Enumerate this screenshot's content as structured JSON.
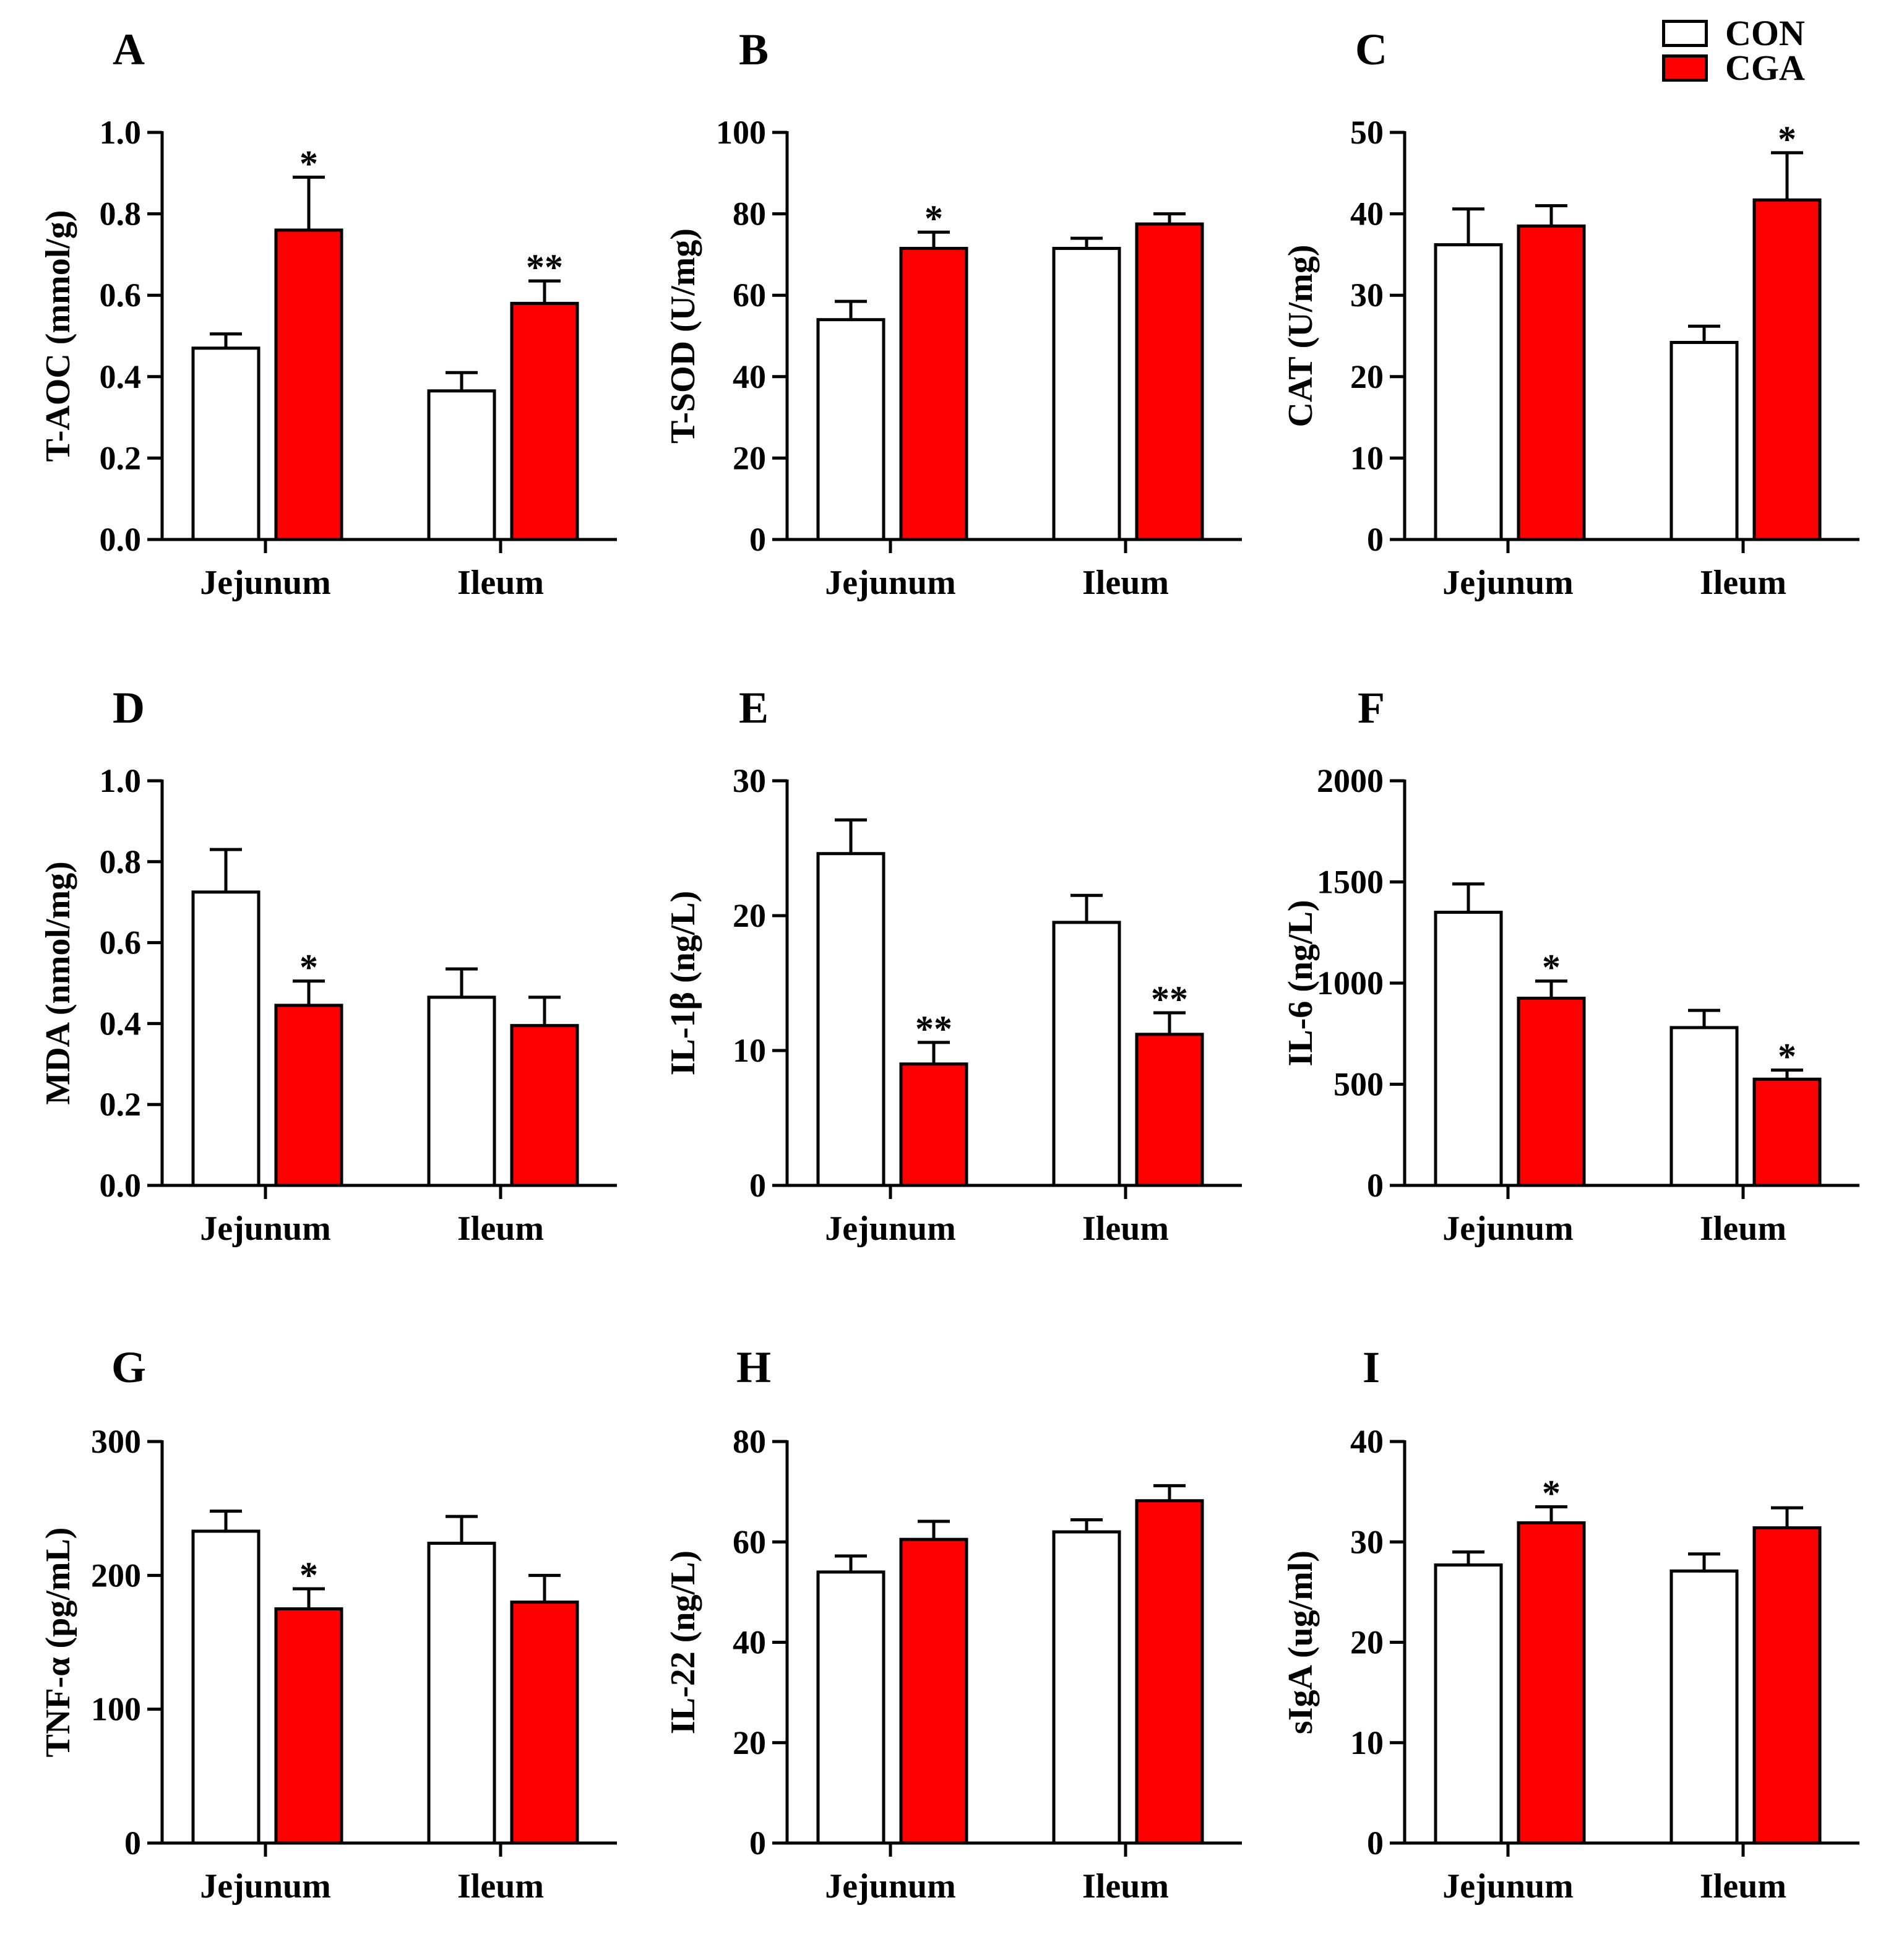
{
  "legend": {
    "con_label": "CON",
    "cga_label": "CGA",
    "con_color": "#ffffff",
    "cga_color": "#ff0000"
  },
  "chart_data": [
    {
      "panel": "A",
      "type": "bar",
      "ylabel": "T-AOC (mmol/g)",
      "categories": [
        "Jejunum",
        "Ileum"
      ],
      "ylim": [
        0,
        1.0
      ],
      "yticks": [
        0.0,
        0.2,
        0.4,
        0.6,
        0.8,
        1.0
      ],
      "tick_decimals": 1,
      "series": [
        {
          "name": "CON",
          "values": [
            0.47,
            0.365
          ],
          "errors": [
            0.035,
            0.045
          ],
          "sig": [
            "",
            ""
          ]
        },
        {
          "name": "CGA",
          "values": [
            0.76,
            0.58
          ],
          "errors": [
            0.13,
            0.055
          ],
          "sig": [
            "*",
            "**"
          ]
        }
      ]
    },
    {
      "panel": "B",
      "type": "bar",
      "ylabel": "T-SOD (U/mg)",
      "categories": [
        "Jejunum",
        "Ileum"
      ],
      "ylim": [
        0,
        100
      ],
      "yticks": [
        0,
        20,
        40,
        60,
        80,
        100
      ],
      "tick_decimals": 0,
      "series": [
        {
          "name": "CON",
          "values": [
            54,
            71.5
          ],
          "errors": [
            4.5,
            2.5
          ],
          "sig": [
            "",
            ""
          ]
        },
        {
          "name": "CGA",
          "values": [
            71.5,
            77.5
          ],
          "errors": [
            4,
            2.5
          ],
          "sig": [
            "*",
            ""
          ]
        }
      ]
    },
    {
      "panel": "C",
      "type": "bar",
      "ylabel": "CAT (U/mg)",
      "categories": [
        "Jejunum",
        "Ileum"
      ],
      "ylim": [
        0,
        50
      ],
      "yticks": [
        0,
        10,
        20,
        30,
        40,
        50
      ],
      "tick_decimals": 0,
      "series": [
        {
          "name": "CON",
          "values": [
            36.2,
            24.2
          ],
          "errors": [
            4.4,
            2.0
          ],
          "sig": [
            "",
            ""
          ]
        },
        {
          "name": "CGA",
          "values": [
            38.5,
            41.7
          ],
          "errors": [
            2.5,
            5.8
          ],
          "sig": [
            "",
            "*"
          ]
        }
      ]
    },
    {
      "panel": "D",
      "type": "bar",
      "ylabel": "MDA (nmol/mg)",
      "categories": [
        "Jejunum",
        "Ileum"
      ],
      "ylim": [
        0,
        1.0
      ],
      "yticks": [
        0.0,
        0.2,
        0.4,
        0.6,
        0.8,
        1.0
      ],
      "tick_decimals": 1,
      "series": [
        {
          "name": "CON",
          "values": [
            0.725,
            0.465
          ],
          "errors": [
            0.105,
            0.07
          ],
          "sig": [
            "",
            ""
          ]
        },
        {
          "name": "CGA",
          "values": [
            0.445,
            0.395
          ],
          "errors": [
            0.06,
            0.07
          ],
          "sig": [
            "*",
            ""
          ]
        }
      ]
    },
    {
      "panel": "E",
      "type": "bar",
      "ylabel": "IL-1β (ng/L)",
      "categories": [
        "Jejunum",
        "Ileum"
      ],
      "ylim": [
        0,
        30
      ],
      "yticks": [
        0,
        10,
        20,
        30
      ],
      "tick_decimals": 0,
      "series": [
        {
          "name": "CON",
          "values": [
            24.6,
            19.5
          ],
          "errors": [
            2.5,
            2.0
          ],
          "sig": [
            "",
            ""
          ]
        },
        {
          "name": "CGA",
          "values": [
            9.0,
            11.2
          ],
          "errors": [
            1.6,
            1.6
          ],
          "sig": [
            "**",
            "**"
          ]
        }
      ]
    },
    {
      "panel": "F",
      "type": "bar",
      "ylabel": "IL-6 (ng/L)",
      "categories": [
        "Jejunum",
        "Ileum"
      ],
      "ylim": [
        0,
        2000
      ],
      "yticks": [
        0,
        500,
        1000,
        1500,
        2000
      ],
      "tick_decimals": 0,
      "series": [
        {
          "name": "CON",
          "values": [
            1350,
            780
          ],
          "errors": [
            140,
            85
          ],
          "sig": [
            "",
            ""
          ]
        },
        {
          "name": "CGA",
          "values": [
            925,
            525
          ],
          "errors": [
            85,
            45
          ],
          "sig": [
            "*",
            "*"
          ]
        }
      ]
    },
    {
      "panel": "G",
      "type": "bar",
      "ylabel": "TNF-α (pg/mL)",
      "categories": [
        "Jejunum",
        "Ileum"
      ],
      "ylim": [
        0,
        300
      ],
      "yticks": [
        0,
        100,
        200,
        300
      ],
      "tick_decimals": 0,
      "series": [
        {
          "name": "CON",
          "values": [
            233,
            224
          ],
          "errors": [
            15,
            20
          ],
          "sig": [
            "",
            ""
          ]
        },
        {
          "name": "CGA",
          "values": [
            175,
            180
          ],
          "errors": [
            15,
            20
          ],
          "sig": [
            "*",
            ""
          ]
        }
      ]
    },
    {
      "panel": "H",
      "type": "bar",
      "ylabel": "IL-22 (ng/L)",
      "categories": [
        "Jejunum",
        "Ileum"
      ],
      "ylim": [
        0,
        80
      ],
      "yticks": [
        0,
        20,
        40,
        60,
        80
      ],
      "tick_decimals": 0,
      "series": [
        {
          "name": "CON",
          "values": [
            54,
            62
          ],
          "errors": [
            3.2,
            2.4
          ],
          "sig": [
            "",
            ""
          ]
        },
        {
          "name": "CGA",
          "values": [
            60.5,
            68.2
          ],
          "errors": [
            3.6,
            3.0
          ],
          "sig": [
            "",
            ""
          ]
        }
      ]
    },
    {
      "panel": "I",
      "type": "bar",
      "ylabel": "sIgA (ug/ml)",
      "categories": [
        "Jejunum",
        "Ileum"
      ],
      "ylim": [
        0,
        40
      ],
      "yticks": [
        0,
        10,
        20,
        30,
        40
      ],
      "tick_decimals": 0,
      "series": [
        {
          "name": "CON",
          "values": [
            27.7,
            27.1
          ],
          "errors": [
            1.3,
            1.7
          ],
          "sig": [
            "",
            ""
          ]
        },
        {
          "name": "CGA",
          "values": [
            31.9,
            31.4
          ],
          "errors": [
            1.6,
            2.0
          ],
          "sig": [
            "*",
            ""
          ]
        }
      ]
    }
  ]
}
